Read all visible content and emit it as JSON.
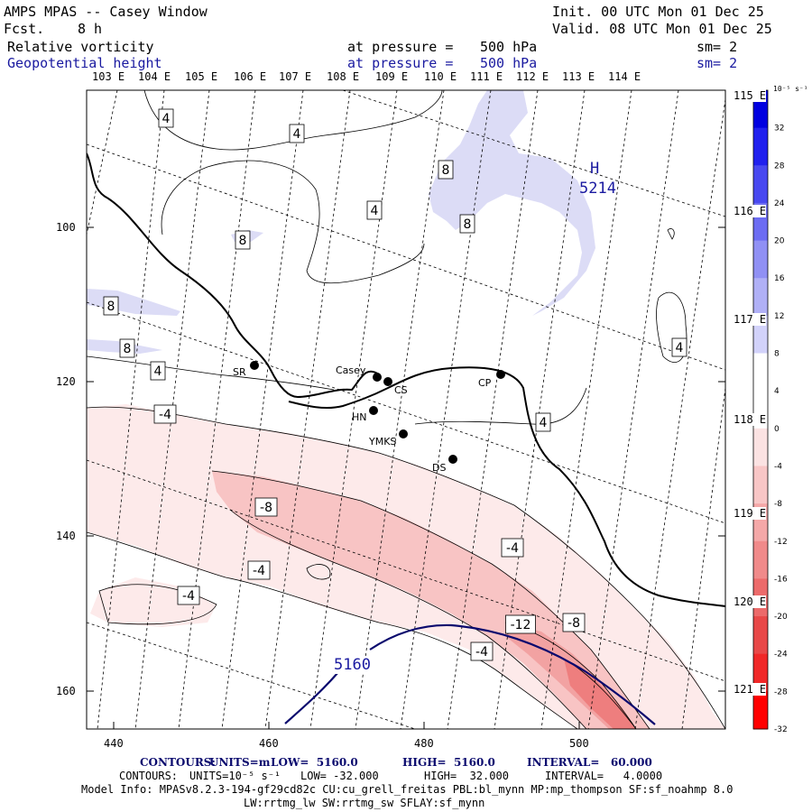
{
  "header": {
    "title": "AMPS MPAS -- Casey Window",
    "fcst_label": "Fcst.",
    "fcst_value": "8 h",
    "init": "Init. 00 UTC Mon 01 Dec 25",
    "valid": "Valid. 08 UTC Mon 01 Dec 25"
  },
  "fields": [
    {
      "name": "Relative vorticity",
      "pressure_label": "at pressure =",
      "pressure": "500 hPa",
      "sm": "sm= 2",
      "color": "#000000"
    },
    {
      "name": "Geopotential height",
      "pressure_label": "at pressure =",
      "pressure": "500 hPa",
      "sm": "sm= 2",
      "color": "#1a1aa0"
    }
  ],
  "lon_top": [
    "103 E",
    "104 E",
    "105 E",
    "106 E",
    "107 E",
    "108 E",
    "109 E",
    "110 E",
    "111 E",
    "112 E",
    "113 E",
    "114 E"
  ],
  "lon_right": [
    "115 E",
    "116 E",
    "117 E",
    "118 E",
    "119 E",
    "120 E",
    "121 E"
  ],
  "x_ticks": [
    "440",
    "460",
    "480",
    "500"
  ],
  "y_ticks": [
    "100",
    "120",
    "140",
    "160"
  ],
  "stations": [
    {
      "name": "SR"
    },
    {
      "name": "Casey"
    },
    {
      "name": "CS"
    },
    {
      "name": "CP"
    },
    {
      "name": "HN"
    },
    {
      "name": "YMKS"
    },
    {
      "name": "DS"
    }
  ],
  "contour_labels": {
    "vort": [
      "4",
      "4",
      "4",
      "8",
      "8",
      "8",
      "8",
      "8",
      "4",
      "4",
      "4",
      "-4",
      "-8",
      "-4",
      "-4",
      "-4",
      "-12",
      "-8",
      "-4"
    ],
    "height": [
      "5160"
    ],
    "high": "H",
    "high_value": "5214"
  },
  "colorbar": {
    "unit": "10⁻⁵ s⁻¹",
    "ticks": [
      "32",
      "28",
      "24",
      "20",
      "16",
      "12",
      "8",
      "4",
      "0",
      "-4",
      "-8",
      "-12",
      "-16",
      "-20",
      "-24",
      "-28",
      "-32"
    ],
    "colors": [
      "#0000e0",
      "#2020ee",
      "#4848f0",
      "#6c6cf2",
      "#9090f4",
      "#b0b0f6",
      "#d2d2fa",
      "#ffffff",
      "#ffffff",
      "#fbe2e2",
      "#f8c6c6",
      "#f4a8a8",
      "#f08a8a",
      "#ec6a6a",
      "#e84848",
      "#f02828",
      "#ff0000"
    ]
  },
  "footer": {
    "line1_contours": "CONTOURS:",
    "line1_units": "UNITS=m",
    "line1_low": "LOW=  5160.0",
    "line1_high": "HIGH=  5160.0",
    "line1_interval": "INTERVAL=   60.000",
    "line2_contours": "CONTOURS:",
    "line2_units": "UNITS=10⁻⁵ s⁻¹",
    "line2_low": "LOW= -32.000",
    "line2_high": "HIGH=  32.000",
    "line2_interval": "INTERVAL=   4.0000",
    "model_info": "Model Info: MPASv8.2.3-194-gf29cd82c CU:cu_grell_freitas PBL:bl_mynn MP:mp_thompson SF:sf_noahmp 8.0",
    "model_info2": "LW:rrtmg_lw SW:rrtmg_sw SFLAY:sf_mynn"
  }
}
